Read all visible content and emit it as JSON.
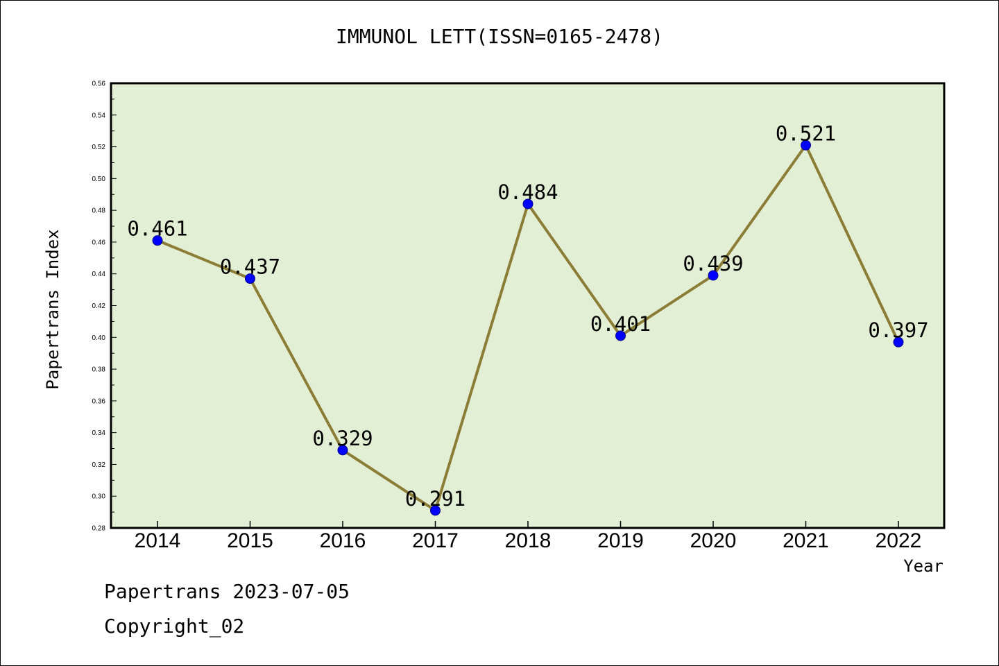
{
  "chart_data": {
    "type": "line",
    "title": "IMMUNOL LETT(ISSN=0165-2478)",
    "xlabel": "Year",
    "ylabel": "Papertrans Index",
    "categories": [
      "2014",
      "2015",
      "2016",
      "2017",
      "2018",
      "2019",
      "2020",
      "2021",
      "2022"
    ],
    "values": [
      0.461,
      0.437,
      0.329,
      0.291,
      0.484,
      0.401,
      0.439,
      0.521,
      0.397
    ],
    "data_labels": [
      "0.461",
      "0.437",
      "0.329",
      "0.291",
      "0.484",
      "0.401",
      "0.439",
      "0.521",
      "0.397"
    ],
    "ylim": [
      0.28,
      0.56
    ],
    "yticks": [
      "0.28",
      "0.30",
      "0.32",
      "0.34",
      "0.36",
      "0.38",
      "0.40",
      "0.42",
      "0.44",
      "0.46",
      "0.48",
      "0.50",
      "0.52",
      "0.54",
      "0.56"
    ],
    "grid": false,
    "colors": {
      "plot_background": "#e2efd5",
      "line": "#8b7d36",
      "marker": "#0000ff"
    }
  },
  "footer": {
    "line1": "Papertrans 2023-07-05",
    "line2": "Copyright_02"
  }
}
